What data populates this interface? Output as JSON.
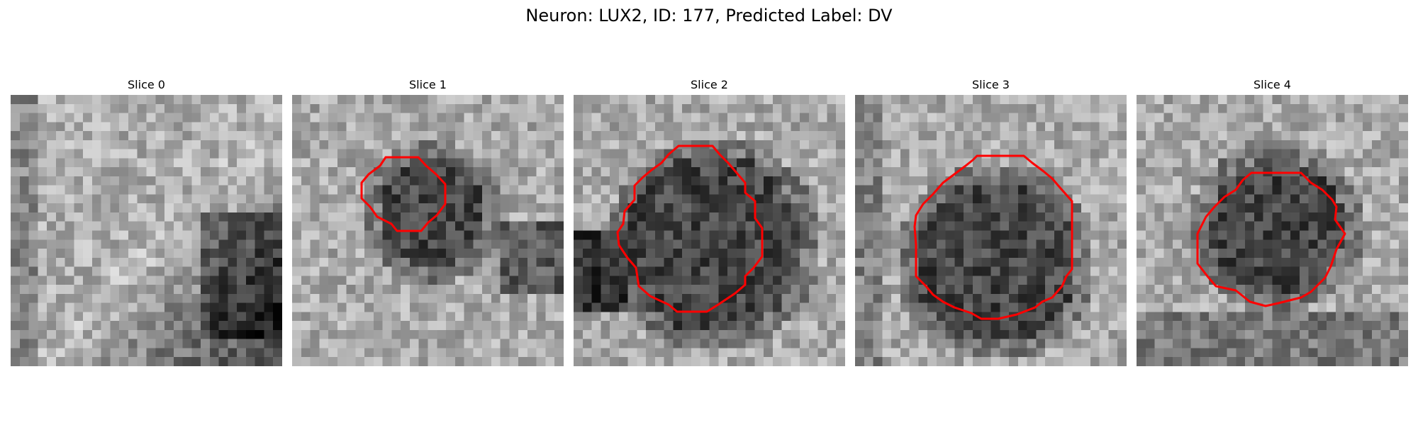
{
  "figure": {
    "title": "Neuron: LUX2, ID: 177, Predicted Label: DV"
  },
  "panels": [
    {
      "title": "Slice 0",
      "has_contour": false,
      "style": "diagonal-dark-lower-right"
    },
    {
      "title": "Slice 1",
      "has_contour": true,
      "style": "small-dark-blob"
    },
    {
      "title": "Slice 2",
      "has_contour": true,
      "style": "large-dark-blob"
    },
    {
      "title": "Slice 3",
      "has_contour": true,
      "style": "medium-dark-blob"
    },
    {
      "title": "Slice 4",
      "has_contour": true,
      "style": "medium-dark-blob-upper"
    }
  ],
  "colors": {
    "contour": "#ff0000",
    "background": "#ffffff"
  },
  "colormap": "gray"
}
